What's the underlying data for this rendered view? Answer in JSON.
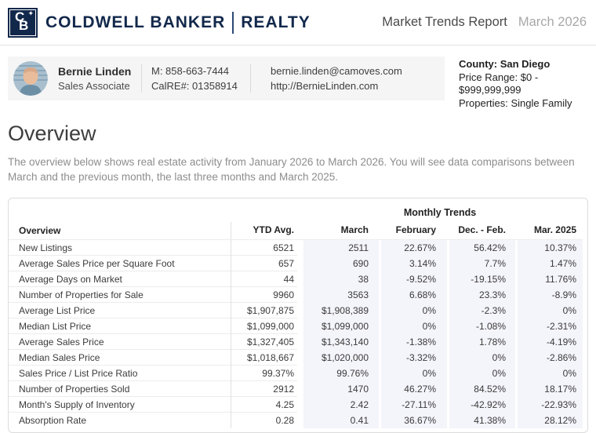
{
  "brand": {
    "logo_letter_c": "C",
    "logo_letter_b": "B",
    "logo_star": "✦",
    "name_left": "COLDWELL BANKER",
    "name_right": "REALTY"
  },
  "report": {
    "title": "Market Trends Report",
    "period": "March 2026"
  },
  "agent": {
    "name": "Bernie Linden",
    "title": "Sales Associate",
    "mobile": "M: 858-663-7444",
    "license": "CalRE#: 01358914",
    "email": "bernie.linden@camoves.com",
    "website": "http://BernieLinden.com"
  },
  "criteria": {
    "county": "County: San Diego",
    "price_range": "Price Range: $0 - $999,999,999",
    "properties": "Properties: Single Family"
  },
  "overview": {
    "heading": "Overview",
    "description": "The overview below shows real estate activity from January 2026 to March 2026. You will see data comparisons between March and the previous month, the last three months and March 2025."
  },
  "table": {
    "group_header": "Monthly Trends",
    "columns": [
      "Overview",
      "YTD Avg.",
      "March",
      "February",
      "Dec. - Feb.",
      "Mar. 2025"
    ],
    "rows": [
      {
        "label": "New Listings",
        "ytd": "6521",
        "march": "2511",
        "trends": [
          {
            "v": "22.67%",
            "dir": "up"
          },
          {
            "v": "56.42%",
            "dir": "up"
          },
          {
            "v": "10.37%",
            "dir": "up"
          }
        ]
      },
      {
        "label": "Average Sales Price per Square Foot",
        "ytd": "657",
        "march": "690",
        "trends": [
          {
            "v": "3.14%",
            "dir": "up"
          },
          {
            "v": "7.7%",
            "dir": "up"
          },
          {
            "v": "1.47%",
            "dir": "up"
          }
        ]
      },
      {
        "label": "Average Days on Market",
        "ytd": "44",
        "march": "38",
        "trends": [
          {
            "v": "-9.52%",
            "dir": "down"
          },
          {
            "v": "-19.15%",
            "dir": "down"
          },
          {
            "v": "11.76%",
            "dir": "up"
          }
        ]
      },
      {
        "label": "Number of Properties for Sale",
        "ytd": "9960",
        "march": "3563",
        "trends": [
          {
            "v": "6.68%",
            "dir": "up"
          },
          {
            "v": "23.3%",
            "dir": "up"
          },
          {
            "v": "-8.9%",
            "dir": "down"
          }
        ]
      },
      {
        "label": "Average List Price",
        "ytd": "$1,907,875",
        "march": "$1,908,389",
        "trends": [
          {
            "v": "0%",
            "dir": "flat"
          },
          {
            "v": "-2.3%",
            "dir": "down"
          },
          {
            "v": "0%",
            "dir": "flat"
          }
        ]
      },
      {
        "label": "Median List Price",
        "ytd": "$1,099,000",
        "march": "$1,099,000",
        "trends": [
          {
            "v": "0%",
            "dir": "flat"
          },
          {
            "v": "-1.08%",
            "dir": "down"
          },
          {
            "v": "-2.31%",
            "dir": "down"
          }
        ]
      },
      {
        "label": "Average Sales Price",
        "ytd": "$1,327,405",
        "march": "$1,343,140",
        "trends": [
          {
            "v": "-1.38%",
            "dir": "down"
          },
          {
            "v": "1.78%",
            "dir": "up"
          },
          {
            "v": "-4.19%",
            "dir": "down"
          }
        ]
      },
      {
        "label": "Median Sales Price",
        "ytd": "$1,018,667",
        "march": "$1,020,000",
        "trends": [
          {
            "v": "-3.32%",
            "dir": "down"
          },
          {
            "v": "0%",
            "dir": "flat"
          },
          {
            "v": "-2.86%",
            "dir": "down"
          }
        ]
      },
      {
        "label": "Sales Price / List Price Ratio",
        "ytd": "99.37%",
        "march": "99.76%",
        "trends": [
          {
            "v": "0%",
            "dir": "flat"
          },
          {
            "v": "0%",
            "dir": "flat"
          },
          {
            "v": "0%",
            "dir": "flat"
          }
        ]
      },
      {
        "label": "Number of Properties Sold",
        "ytd": "2912",
        "march": "1470",
        "trends": [
          {
            "v": "46.27%",
            "dir": "up"
          },
          {
            "v": "84.52%",
            "dir": "up"
          },
          {
            "v": "18.17%",
            "dir": "up"
          }
        ]
      },
      {
        "label": "Month's Supply of Inventory",
        "ytd": "4.25",
        "march": "2.42",
        "trends": [
          {
            "v": "-27.11%",
            "dir": "down"
          },
          {
            "v": "-42.92%",
            "dir": "down"
          },
          {
            "v": "-22.93%",
            "dir": "down"
          }
        ]
      },
      {
        "label": "Absorption Rate",
        "ytd": "0.28",
        "march": "0.41",
        "trends": [
          {
            "v": "36.67%",
            "dir": "up"
          },
          {
            "v": "41.38%",
            "dir": "up"
          },
          {
            "v": "28.12%",
            "dir": "up"
          }
        ]
      }
    ]
  },
  "colors": {
    "brand_navy": "#12284b",
    "positive_green": "#23c16a",
    "negative_red": "#e0534f",
    "trend_column_bg": "#f4f4fb",
    "agent_bar_bg": "#f5f5f5"
  }
}
